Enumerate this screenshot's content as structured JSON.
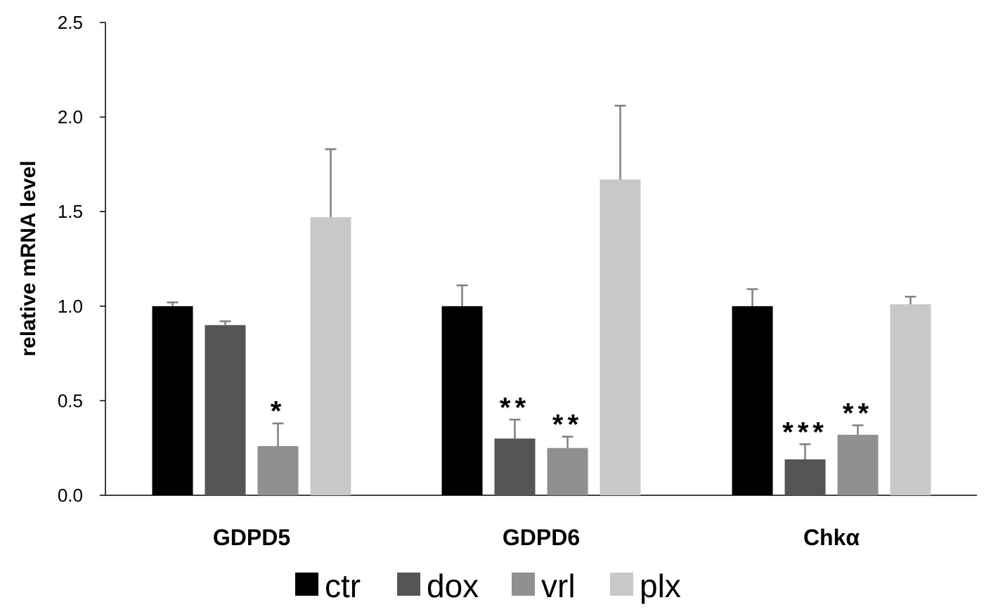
{
  "chart_data": {
    "type": "bar",
    "title": "",
    "xlabel": "",
    "ylabel": "relative mRNA level",
    "ylim": [
      0,
      2.5
    ],
    "yticks": [
      0.0,
      0.5,
      1.0,
      1.5,
      2.0,
      2.5
    ],
    "ytick_labels": [
      "0.0",
      "0.5",
      "1.0",
      "1.5",
      "2.0",
      "2.5"
    ],
    "categories": [
      "GDPD5",
      "GDPD6",
      "Chkα"
    ],
    "series": [
      {
        "name": "ctr",
        "color": "#000000",
        "values": [
          1.0,
          1.0,
          1.0
        ],
        "errors": [
          0.02,
          0.11,
          0.09
        ],
        "significance": [
          "",
          "",
          ""
        ]
      },
      {
        "name": "dox",
        "color": "#555555",
        "values": [
          0.9,
          0.3,
          0.19
        ],
        "errors": [
          0.02,
          0.1,
          0.08
        ],
        "significance": [
          "",
          "**",
          "***"
        ]
      },
      {
        "name": "vrl",
        "color": "#909090",
        "values": [
          0.26,
          0.25,
          0.32
        ],
        "errors": [
          0.12,
          0.06,
          0.05
        ],
        "significance": [
          "*",
          "**",
          "**"
        ]
      },
      {
        "name": "plx",
        "color": "#c8c8c8",
        "values": [
          1.47,
          1.67,
          1.01
        ],
        "errors": [
          0.36,
          0.39,
          0.04
        ],
        "significance": [
          "",
          "",
          ""
        ]
      }
    ],
    "error_bar_color": "#808080",
    "grid": false,
    "legend_position": "bottom"
  }
}
